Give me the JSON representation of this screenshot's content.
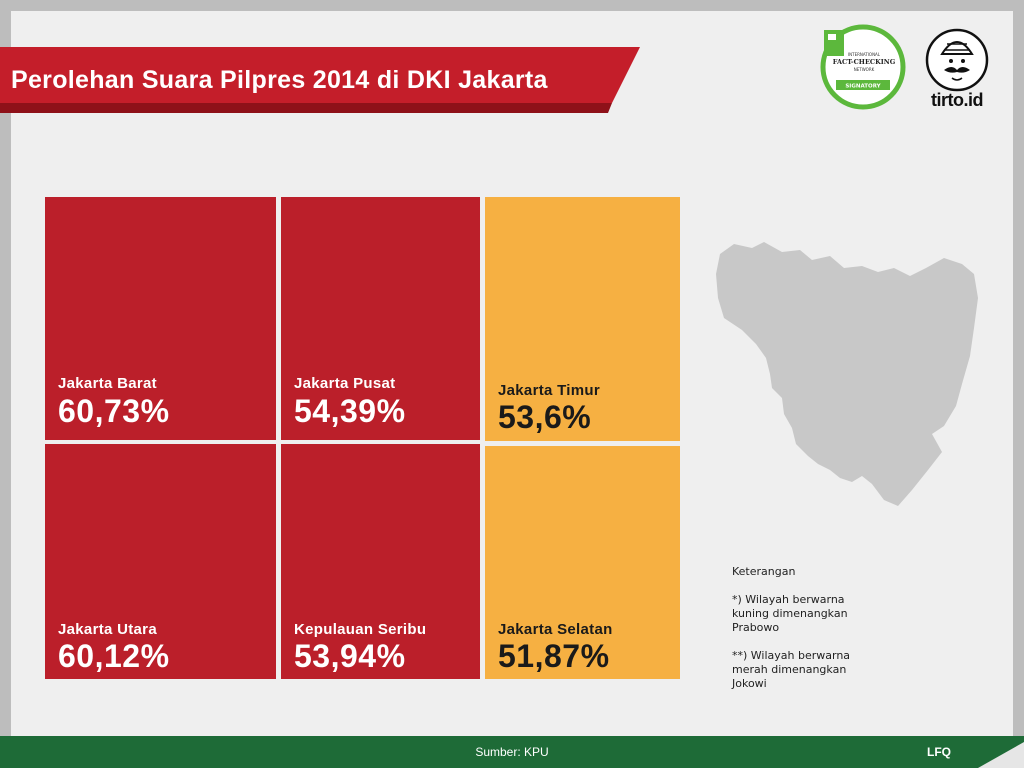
{
  "header": {
    "title": "Perolehan Suara Pilpres 2014 di DKI Jakarta"
  },
  "badge": {
    "top_line": "INTERNATIONAL",
    "main_line": "FACT-CHECKING",
    "sub_line": "NETWORK",
    "ribbon": "SIGNATORY"
  },
  "logo": {
    "text": "tirto.id"
  },
  "chart_data": {
    "type": "table",
    "title": "Perolehan Suara Pilpres 2014 di DKI Jakarta",
    "categories": [
      "Jakarta Barat",
      "Jakarta Pusat",
      "Jakarta Timur",
      "Jakarta Utara",
      "Kepulauan Seribu",
      "Jakarta Selatan"
    ],
    "values_text": [
      "60,73%",
      "54,39%",
      "53,6%",
      "60,12%",
      "53,94%",
      "51,87%"
    ],
    "values": [
      60.73,
      54.39,
      53.6,
      60.12,
      53.94,
      51.87
    ],
    "winner": [
      "Jokowi",
      "Jokowi",
      "Prabowo",
      "Jokowi",
      "Jokowi",
      "Prabowo"
    ],
    "colors": {
      "Jokowi": "#bb1f2a",
      "Prabowo": "#f6b042"
    }
  },
  "legend": {
    "heading": "Keterangan",
    "note_yellow": "*) Wilayah berwarna kuning dimenangkan Prabowo",
    "note_red": "**) Wilayah berwarna merah dimenangkan Jokowi"
  },
  "footer": {
    "source": "Sumber: KPU",
    "credit": "LFQ"
  }
}
